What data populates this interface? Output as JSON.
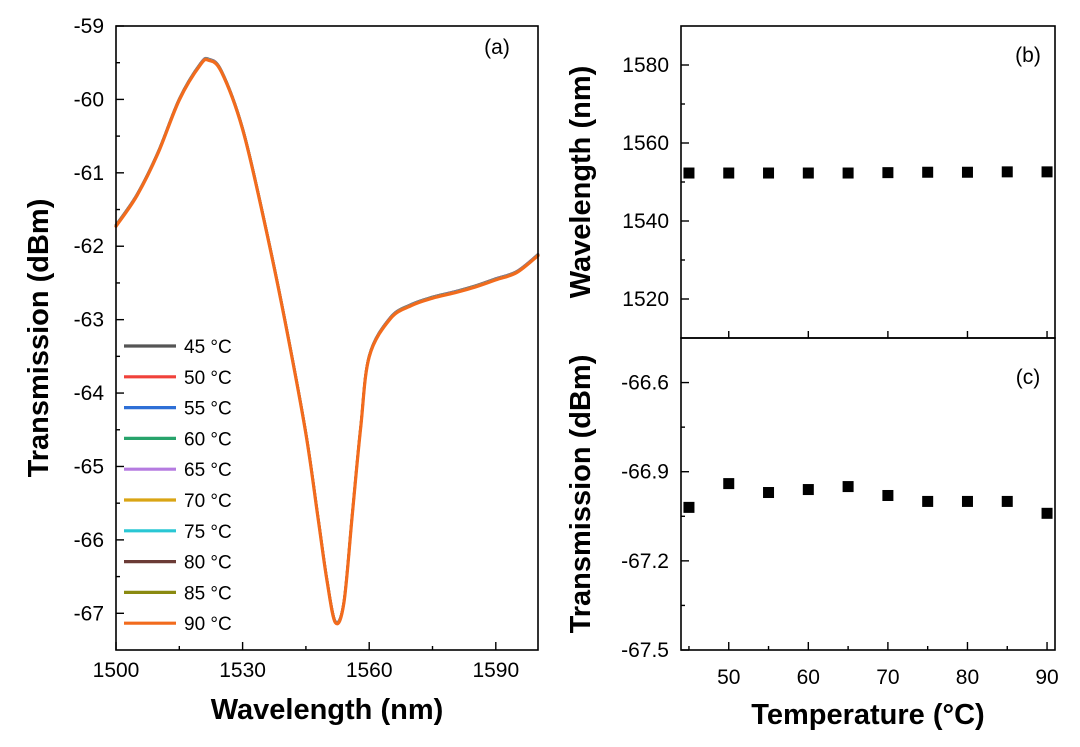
{
  "chart_data": [
    {
      "panel": "(a)",
      "type": "line",
      "xlabel": "Wavelength (nm)",
      "ylabel": "Transmission (dBm)",
      "xlim": [
        1500,
        1600
      ],
      "ylim": [
        -67.5,
        -59
      ],
      "xticks": [
        "1500",
        "1530",
        "1560",
        "1590"
      ],
      "yticks": [
        "-59",
        "-60",
        "-61",
        "-62",
        "-63",
        "-64",
        "-65",
        "-66",
        "-67"
      ],
      "legend_position": "bottom-left",
      "x": [
        1500,
        1505,
        1510,
        1515,
        1520,
        1522,
        1525,
        1530,
        1535,
        1540,
        1545,
        1548,
        1550,
        1552,
        1554,
        1556,
        1558,
        1560,
        1565,
        1570,
        1575,
        1580,
        1585,
        1590,
        1595,
        1600
      ],
      "series": [
        {
          "name": "45 °C",
          "color": "#555555",
          "offset": 0.01
        },
        {
          "name": "50 °C",
          "color": "#f0413a",
          "offset": 0.008
        },
        {
          "name": "55 °C",
          "color": "#2e6fd6",
          "offset": 0.006
        },
        {
          "name": "60 °C",
          "color": "#27a36b",
          "offset": 0.004
        },
        {
          "name": "65 °C",
          "color": "#b57be0",
          "offset": 0.002
        },
        {
          "name": "70 °C",
          "color": "#d9a514",
          "offset": 0.0
        },
        {
          "name": "75 °C",
          "color": "#29c7d4",
          "offset": -0.002
        },
        {
          "name": "80 °C",
          "color": "#6b3b36",
          "offset": -0.004
        },
        {
          "name": "85 °C",
          "color": "#8a8a10",
          "offset": -0.006
        },
        {
          "name": "90 °C",
          "color": "#f26b1d",
          "offset": -0.008
        }
      ],
      "base_values": [
        -61.72,
        -61.3,
        -60.72,
        -60.0,
        -59.52,
        -59.46,
        -59.62,
        -60.4,
        -61.62,
        -63.0,
        -64.55,
        -65.75,
        -66.55,
        -67.12,
        -66.85,
        -65.65,
        -64.45,
        -63.5,
        -62.98,
        -62.8,
        -62.7,
        -62.63,
        -62.55,
        -62.45,
        -62.35,
        -62.12
      ]
    },
    {
      "panel": "(b)",
      "type": "scatter",
      "xlabel": "",
      "ylabel": "Wavelength (nm)",
      "xlim": [
        44,
        91
      ],
      "ylim": [
        1510,
        1590
      ],
      "yticks": [
        "1520",
        "1540",
        "1560",
        "1580"
      ],
      "x": [
        45,
        50,
        55,
        60,
        65,
        70,
        75,
        80,
        85,
        90
      ],
      "values": [
        1552.3,
        1552.3,
        1552.3,
        1552.3,
        1552.3,
        1552.4,
        1552.5,
        1552.5,
        1552.6,
        1552.6
      ]
    },
    {
      "panel": "(c)",
      "type": "scatter",
      "xlabel": "Temperature (°C)",
      "ylabel": "Transmission (dBm)",
      "xlim": [
        44,
        91
      ],
      "ylim": [
        -67.5,
        -66.45
      ],
      "xticks": [
        "50",
        "60",
        "70",
        "80",
        "90"
      ],
      "yticks": [
        "-66.6",
        "-66.9",
        "-67.2",
        "-67.5"
      ],
      "x": [
        45,
        50,
        55,
        60,
        65,
        70,
        75,
        80,
        85,
        90
      ],
      "values": [
        -67.02,
        -66.94,
        -66.97,
        -66.96,
        -66.95,
        -66.98,
        -67.0,
        -67.0,
        -67.0,
        -67.04
      ]
    }
  ]
}
